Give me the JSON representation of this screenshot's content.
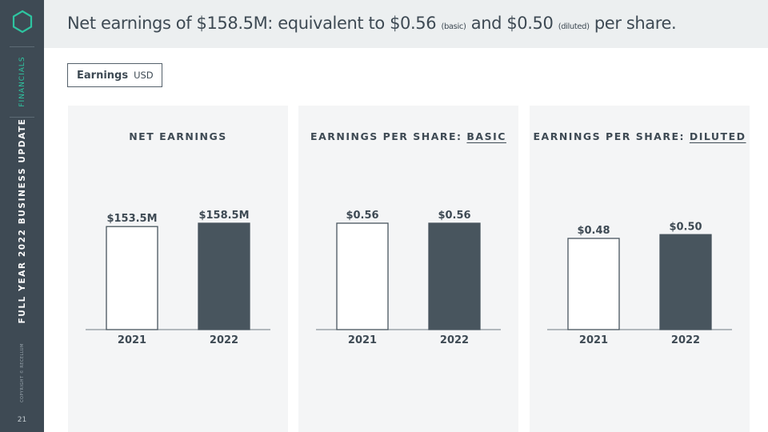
{
  "sidebar": {
    "section": "FINANCIALS",
    "title": "FULL YEAR 2022 BUSINESS UPDATE",
    "copyright": "COPYRIGHT © RECELLUM",
    "page_number": "21"
  },
  "header": {
    "headline_part1": "Net earnings of $158.5M: equivalent to $0.56",
    "basic_note": "(basic)",
    "headline_part2": "and $0.50",
    "diluted_note": "(diluted)",
    "headline_part3": "per share."
  },
  "tag": {
    "label": "Earnings",
    "unit": "USD"
  },
  "colors": {
    "bar_prior": "#ffffff",
    "bar_current": "#48555e",
    "accent": "#2ec4a0"
  },
  "chart_data": [
    {
      "type": "bar",
      "title_prefix": "NET EARNINGS",
      "title_emphasis": "",
      "categories": [
        "2021",
        "2022"
      ],
      "values": [
        153.5,
        158.5
      ],
      "value_labels": [
        "$153.5M",
        "$158.5M"
      ],
      "ylim": [
        0,
        158.5
      ]
    },
    {
      "type": "bar",
      "title_prefix": "EARNINGS PER SHARE: ",
      "title_emphasis": "BASIC",
      "categories": [
        "2021",
        "2022"
      ],
      "values": [
        0.56,
        0.56
      ],
      "value_labels": [
        "$0.56",
        "$0.56"
      ],
      "ylim": [
        0,
        0.56
      ]
    },
    {
      "type": "bar",
      "title_prefix": "EARNINGS PER SHARE: ",
      "title_emphasis": "DILUTED",
      "categories": [
        "2021",
        "2022"
      ],
      "values": [
        0.48,
        0.5
      ],
      "value_labels": [
        "$0.48",
        "$0.50"
      ],
      "ylim": [
        0,
        0.56
      ]
    }
  ]
}
